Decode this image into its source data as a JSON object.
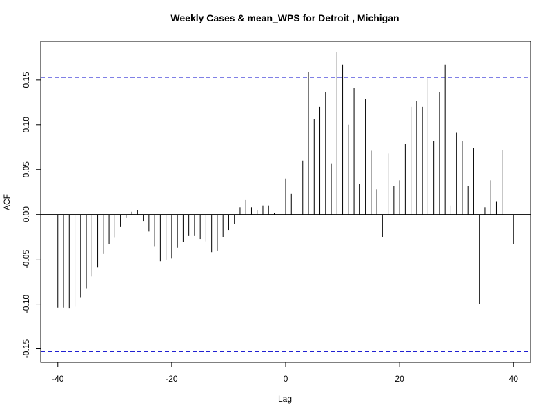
{
  "chart_data": {
    "type": "bar",
    "subtype": "acf-ccf-lollipop",
    "title": "Weekly Cases & mean_WPS for Detroit , Michigan",
    "xlabel": "Lag",
    "ylabel": "ACF",
    "xlim": [
      -43,
      43
    ],
    "ylim": [
      -0.165,
      0.193
    ],
    "xticks": [
      -40,
      -20,
      0,
      20,
      40
    ],
    "xtick_labels": [
      "-40",
      "-20",
      "0",
      "20",
      "40"
    ],
    "yticks": [
      -0.15,
      -0.1,
      -0.05,
      0.0,
      0.05,
      0.1,
      0.15
    ],
    "ytick_labels": [
      "-0.15",
      "-0.10",
      "-0.05",
      "0.00",
      "0.05",
      "0.10",
      "0.15"
    ],
    "confidence_band": 0.153,
    "band_color": "#0000cc",
    "line_color": "#000000",
    "grid": false,
    "lags": [
      -40,
      -39,
      -38,
      -37,
      -36,
      -35,
      -34,
      -33,
      -32,
      -31,
      -30,
      -29,
      -28,
      -27,
      -26,
      -25,
      -24,
      -23,
      -22,
      -21,
      -20,
      -19,
      -18,
      -17,
      -16,
      -15,
      -14,
      -13,
      -12,
      -11,
      -10,
      -9,
      -8,
      -7,
      -6,
      -5,
      -4,
      -3,
      -2,
      -1,
      0,
      1,
      2,
      3,
      4,
      5,
      6,
      7,
      8,
      9,
      10,
      11,
      12,
      13,
      14,
      15,
      16,
      17,
      18,
      19,
      20,
      21,
      22,
      23,
      24,
      25,
      26,
      27,
      28,
      29,
      30,
      31,
      32,
      33,
      34,
      35,
      36,
      37,
      38,
      39,
      40
    ],
    "values": [
      -0.104,
      -0.104,
      -0.105,
      -0.103,
      -0.093,
      -0.083,
      -0.069,
      -0.059,
      -0.044,
      -0.033,
      -0.026,
      -0.014,
      -0.004,
      0.003,
      0.005,
      -0.008,
      -0.019,
      -0.036,
      -0.052,
      -0.051,
      -0.049,
      -0.037,
      -0.031,
      -0.024,
      -0.024,
      -0.028,
      -0.03,
      -0.042,
      -0.041,
      -0.025,
      -0.018,
      -0.011,
      0.008,
      0.016,
      0.008,
      0.005,
      0.01,
      0.01,
      0.002,
      -0.001,
      0.04,
      0.023,
      0.067,
      0.06,
      0.159,
      0.106,
      0.12,
      0.136,
      0.057,
      0.181,
      0.167,
      0.1,
      0.141,
      0.034,
      0.129,
      0.071,
      0.028,
      -0.025,
      0.068,
      0.032,
      0.038,
      0.079,
      0.12,
      0.126,
      0.12,
      0.152,
      0.082,
      0.136,
      0.167,
      0.01,
      0.091,
      0.082,
      0.032,
      0.074,
      -0.1,
      0.008,
      0.038,
      0.014,
      0.072,
      0.0,
      -0.033
    ]
  }
}
